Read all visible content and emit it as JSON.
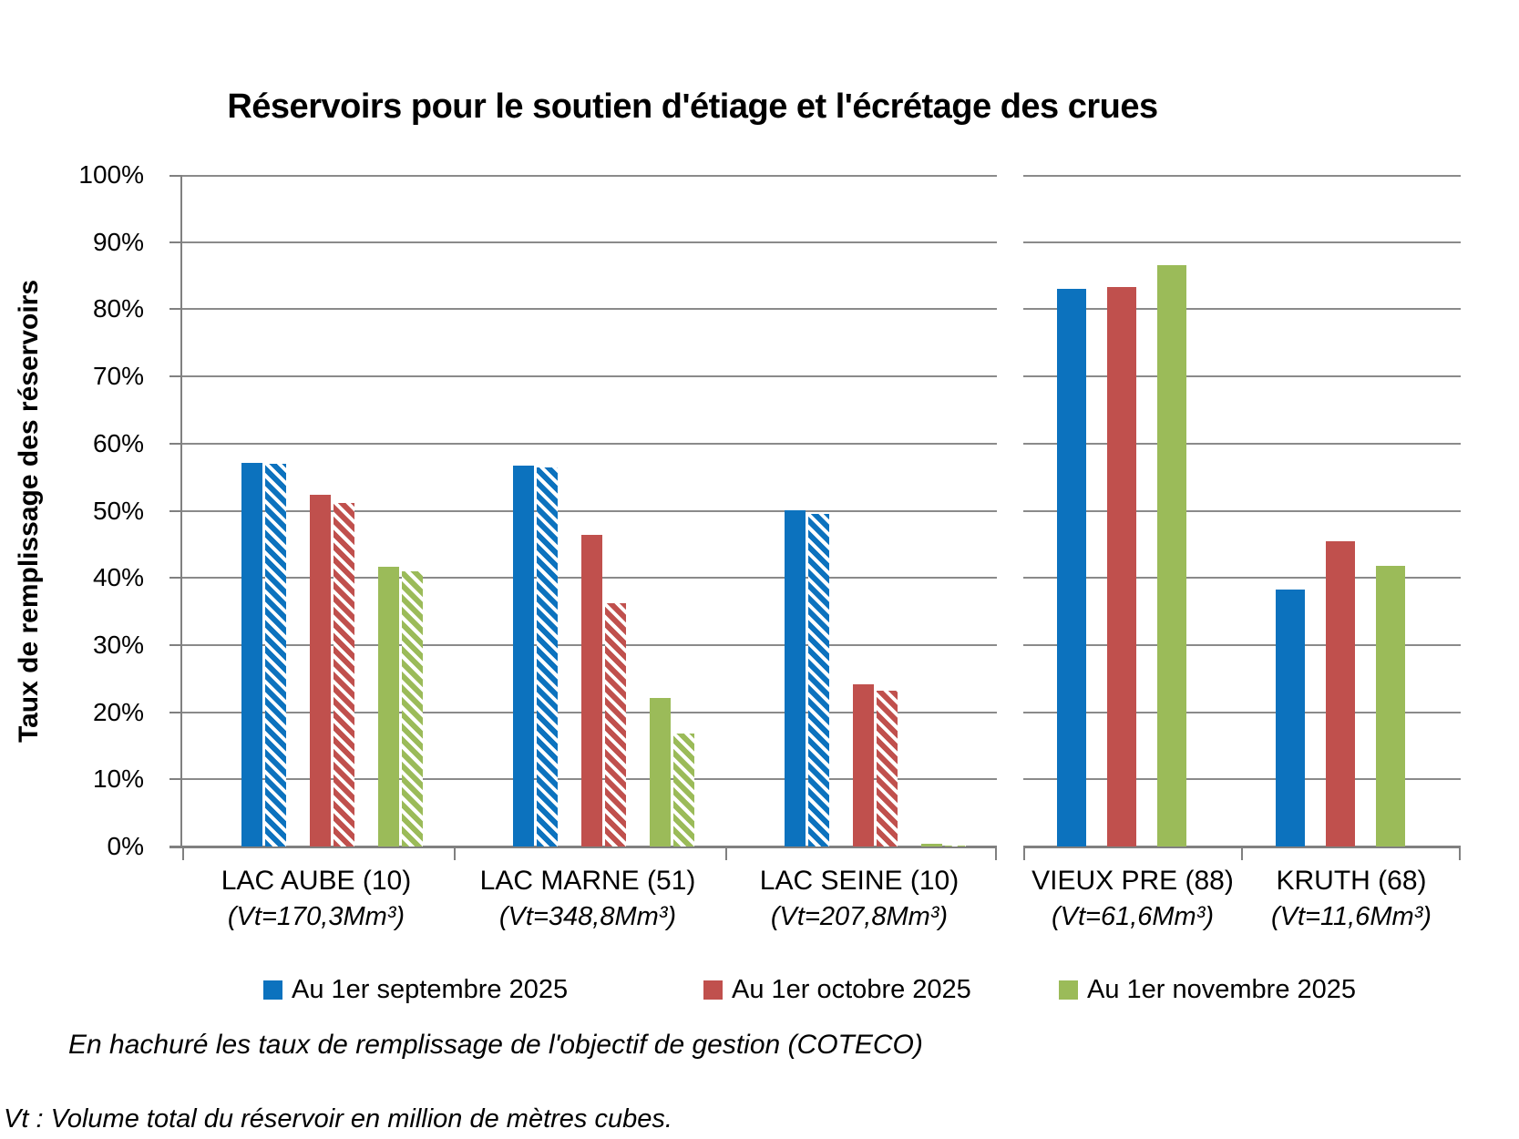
{
  "chart_data": {
    "type": "bar",
    "title": "Réservoirs pour le soutien d'étiage et l'écrétage des crues",
    "ylabel": "Taux de remplissage des réservoirs",
    "xlabel": "",
    "ylim": [
      0,
      100
    ],
    "y_ticks": [
      "0%",
      "10%",
      "20%",
      "30%",
      "40%",
      "50%",
      "60%",
      "70%",
      "80%",
      "90%",
      "100%"
    ],
    "grid": true,
    "legend_position": "bottom",
    "series": [
      {
        "name": "Au 1er septembre 2025",
        "color": "#0C72BE"
      },
      {
        "name": "Au 1er octobre 2025",
        "color": "#C0504D"
      },
      {
        "name": "Au 1er novembre 2025",
        "color": "#9BBB59"
      }
    ],
    "hatched_series_meaning": "taux de remplissage de l'objectif de gestion (COTECO)",
    "panels": [
      {
        "groups": [
          {
            "label": "LAC AUBE (10)",
            "vt": "(Vt=170,3Mm³)",
            "values": [
              57.1,
              52.4,
              41.7
            ],
            "objectives": [
              57.0,
              51.1,
              41.0
            ]
          },
          {
            "label": "LAC MARNE (51)",
            "vt": "(Vt=348,8Mm³)",
            "values": [
              56.7,
              46.4,
              22.1
            ],
            "objectives": [
              56.4,
              36.2,
              16.8
            ]
          },
          {
            "label": "LAC SEINE (10)",
            "vt": "(Vt=207,8Mm³)",
            "values": [
              50.0,
              24.2,
              0.4
            ],
            "objectives": [
              49.5,
              23.2,
              0.2
            ]
          }
        ]
      },
      {
        "groups": [
          {
            "label": "VIEUX PRE (88)",
            "vt": "(Vt=61,6Mm³)",
            "values": [
              83.1,
              83.3,
              86.6
            ],
            "objectives": null
          },
          {
            "label": "KRUTH (68)",
            "vt": "(Vt=11,6Mm³)",
            "values": [
              38.2,
              45.5,
              41.8
            ],
            "objectives": null
          }
        ]
      }
    ],
    "annotations": {
      "hatch_note": "En hachuré les taux de remplissage de l'objectif de gestion (COTECO)",
      "footnote": "Vt : Volume total du réservoir en million de mètres cubes."
    },
    "colors": {
      "gridline": "#8A8A8A",
      "axis": "#808080",
      "background": "#FFFFFF"
    }
  }
}
